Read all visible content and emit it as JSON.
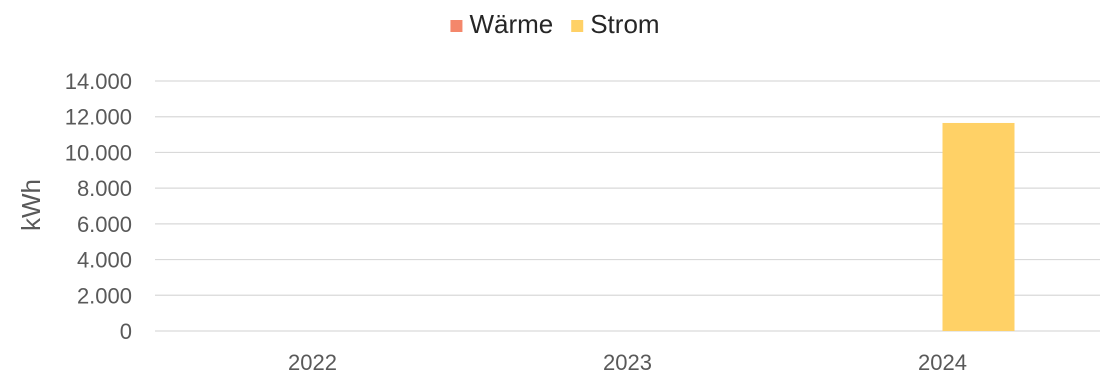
{
  "chart_data": {
    "type": "bar",
    "categories": [
      "2022",
      "2023",
      "2024"
    ],
    "series": [
      {
        "name": "Wärme",
        "color": "#f4876b",
        "values": [
          0,
          0,
          0
        ]
      },
      {
        "name": "Strom",
        "color": "#ffd166",
        "values": [
          0,
          0,
          11650
        ]
      }
    ],
    "xlabel": "",
    "ylabel": "kWh",
    "ylim": [
      0,
      14000
    ],
    "yticks": [
      0,
      2000,
      4000,
      6000,
      8000,
      10000,
      12000,
      14000
    ],
    "ytick_labels": [
      "0",
      "2.000",
      "4.000",
      "6.000",
      "8.000",
      "10.000",
      "12.000",
      "14.000"
    ],
    "grid": true,
    "legend_position": "top"
  }
}
